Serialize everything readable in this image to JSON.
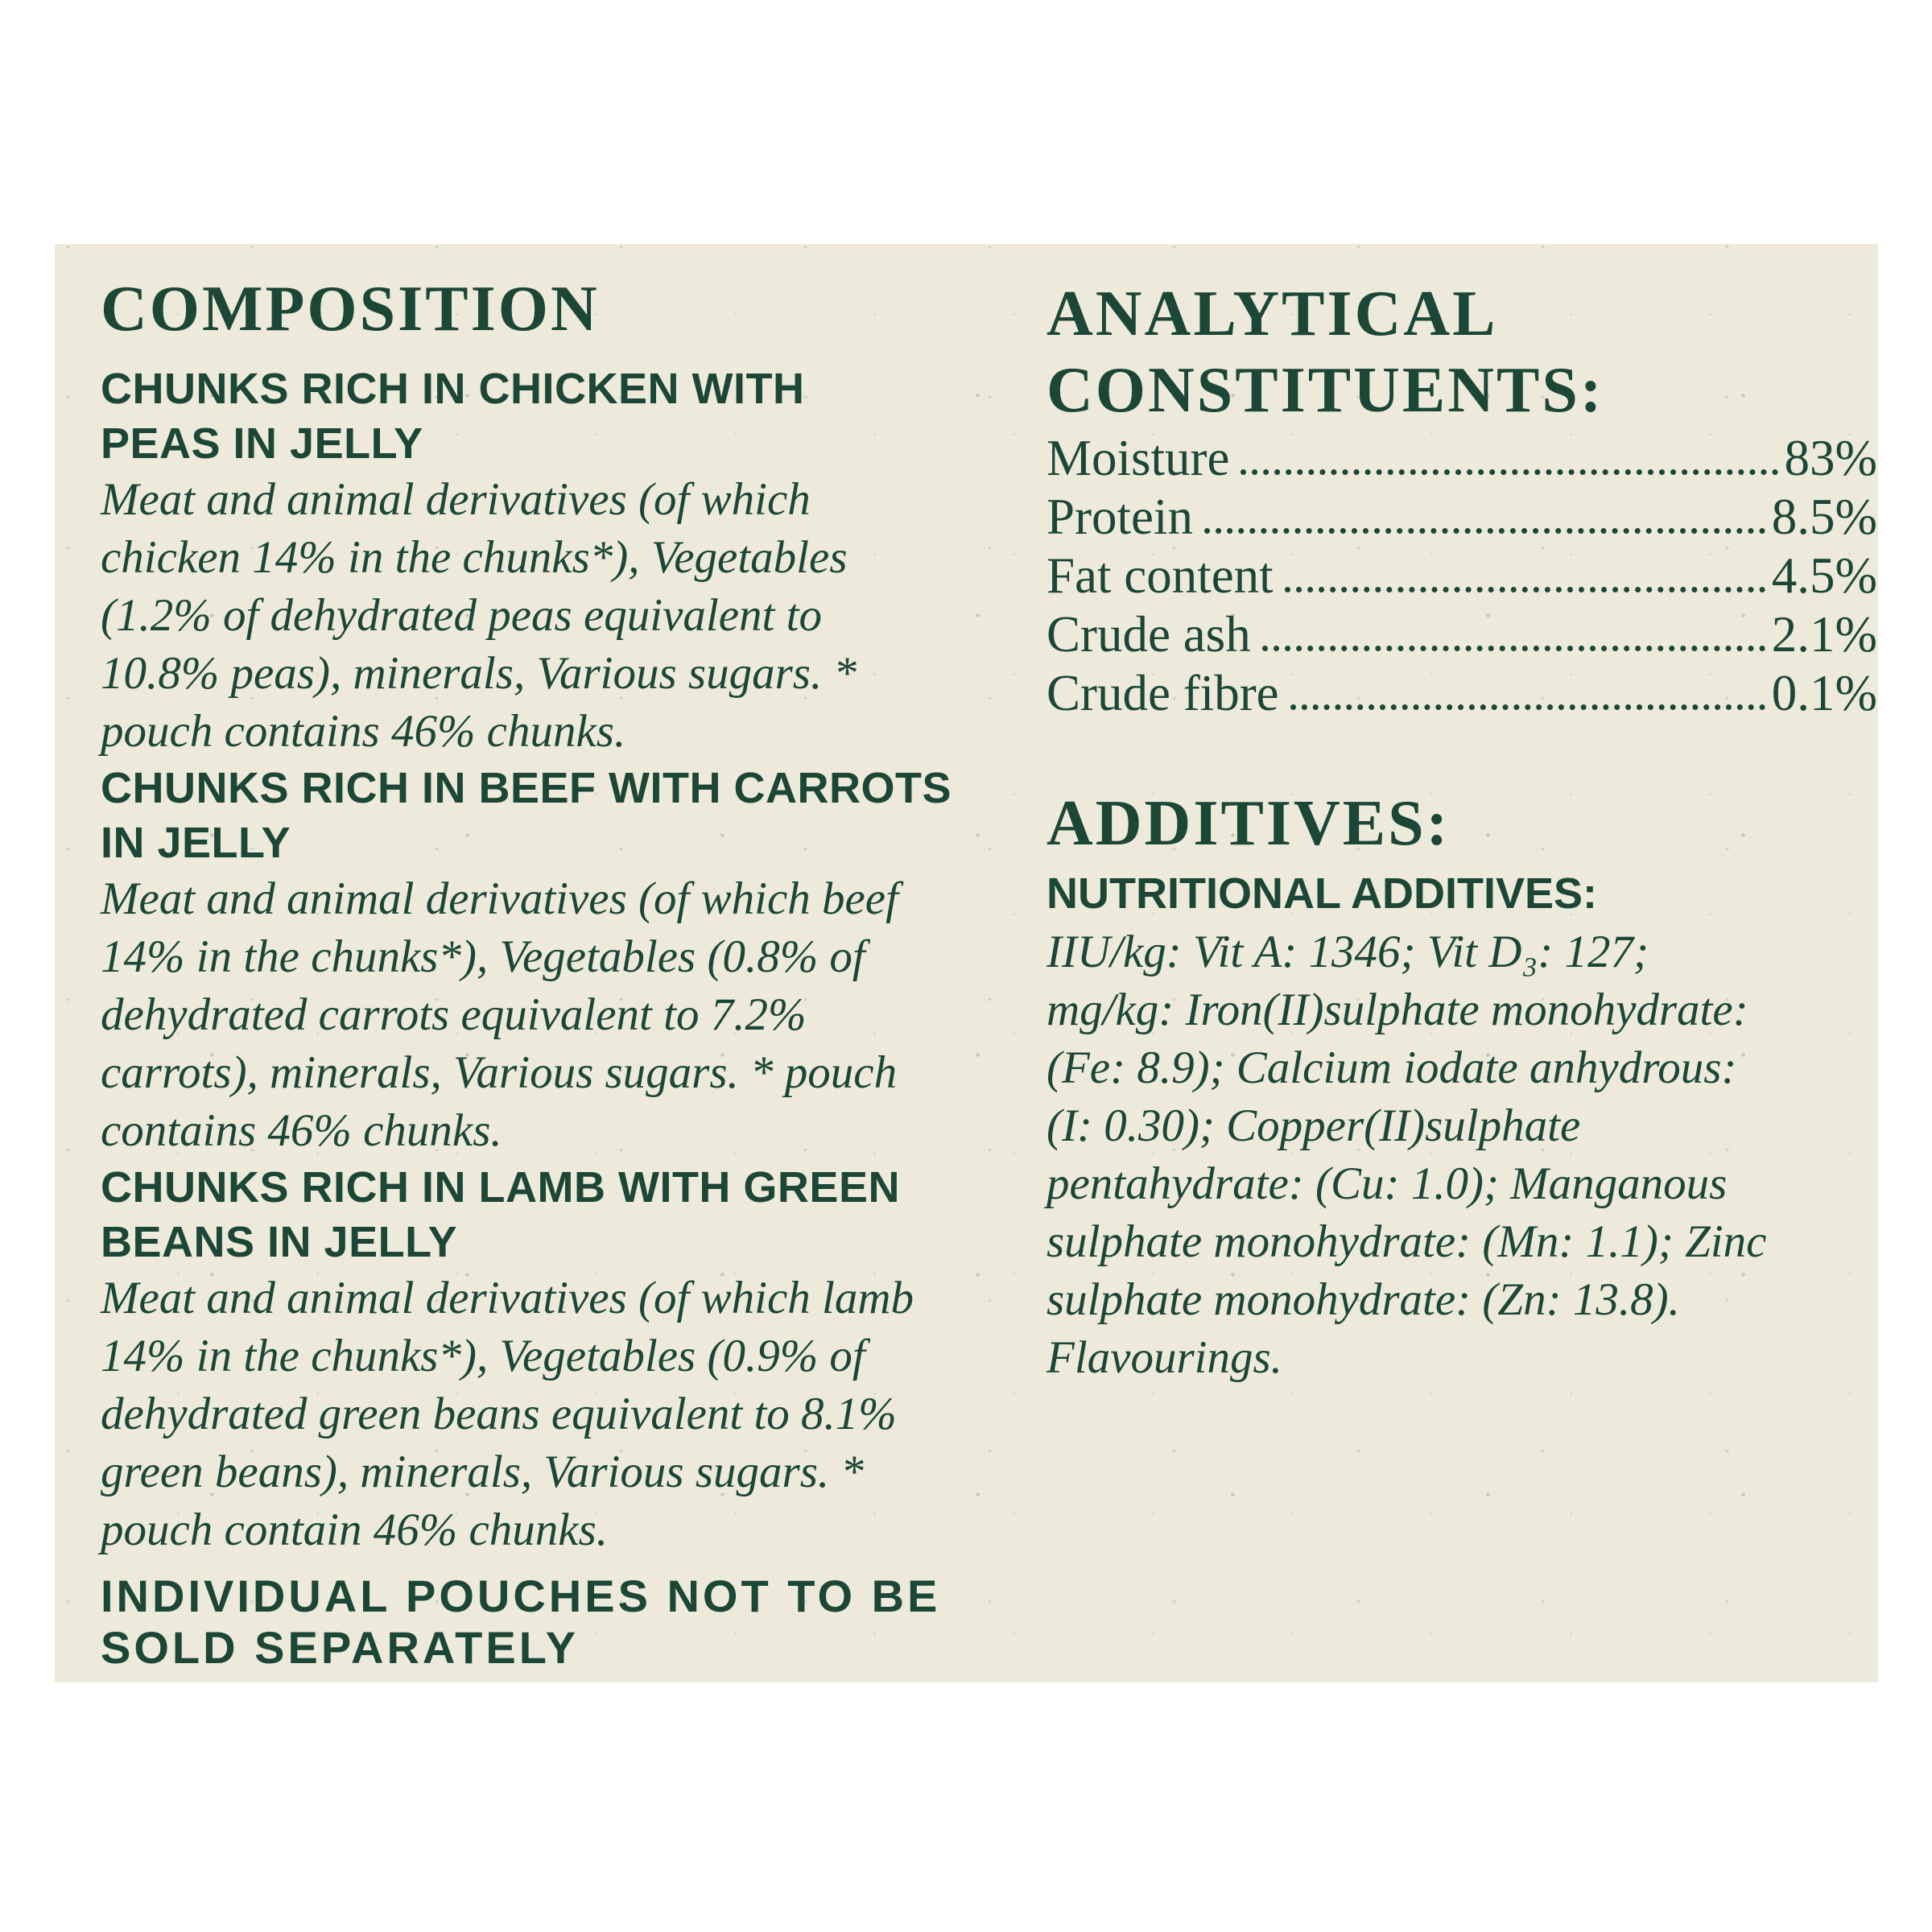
{
  "colors": {
    "ink": "#1c4636",
    "paper": "#edeadb",
    "page": "#ffffff"
  },
  "composition": {
    "title": "COMPOSITION",
    "sections": [
      {
        "heading_lines": [
          "CHUNKS RICH IN CHICKEN WITH",
          "PEAS IN JELLY"
        ],
        "lines": [
          "Meat and animal derivatives (of which",
          "chicken 14% in the chunks*), Vegetables",
          "(1.2% of dehydrated peas equivalent to",
          "10.8% peas), minerals, Various sugars. *",
          "pouch contains 46% chunks."
        ]
      },
      {
        "heading_lines": [
          "CHUNKS RICH IN BEEF WITH CARROTS",
          "IN JELLY"
        ],
        "lines": [
          "Meat and animal derivatives (of which beef",
          "14% in the chunks*), Vegetables (0.8% of",
          "dehydrated carrots equivalent to 7.2%",
          "carrots), minerals, Various sugars. * pouch",
          "contains 46% chunks."
        ]
      },
      {
        "heading_lines": [
          "CHUNKS RICH IN LAMB WITH GREEN",
          "BEANS IN JELLY"
        ],
        "lines": [
          "Meat and animal derivatives (of which lamb",
          "14% in the chunks*), Vegetables (0.9% of",
          "dehydrated green beans equivalent to 8.1%",
          "green beans), minerals, Various sugars. *",
          "pouch contain 46% chunks."
        ]
      }
    ],
    "footer_lines": [
      "INDIVIDUAL POUCHES NOT TO BE",
      "SOLD SEPARATELY"
    ]
  },
  "analytical": {
    "title_lines": [
      "ANALYTICAL",
      "CONSTITUENTS:"
    ],
    "rows": [
      {
        "label": "Moisture",
        "value": "83%"
      },
      {
        "label": "Protein",
        "value": "8.5%"
      },
      {
        "label": "Fat content",
        "value": "4.5%"
      },
      {
        "label": "Crude ash",
        "value": "2.1%"
      },
      {
        "label": "Crude fibre",
        "value": "0.1%"
      }
    ]
  },
  "additives": {
    "title": "ADDITIVES:",
    "subtitle": "NUTRITIONAL ADDITIVES:",
    "lines": [
      "IIU/kg: Vit A: 1346; Vit D₃: 127;",
      "mg/kg: Iron(II)sulphate monohydrate:",
      "(Fe: 8.9); Calcium iodate anhydrous:",
      "(I: 0.30); Copper(II)sulphate",
      "pentahydrate: (Cu: 1.0); Manganous",
      "sulphate monohydrate: (Mn: 1.1); Zinc",
      "sulphate monohydrate: (Zn: 13.8).",
      "Flavourings."
    ]
  }
}
